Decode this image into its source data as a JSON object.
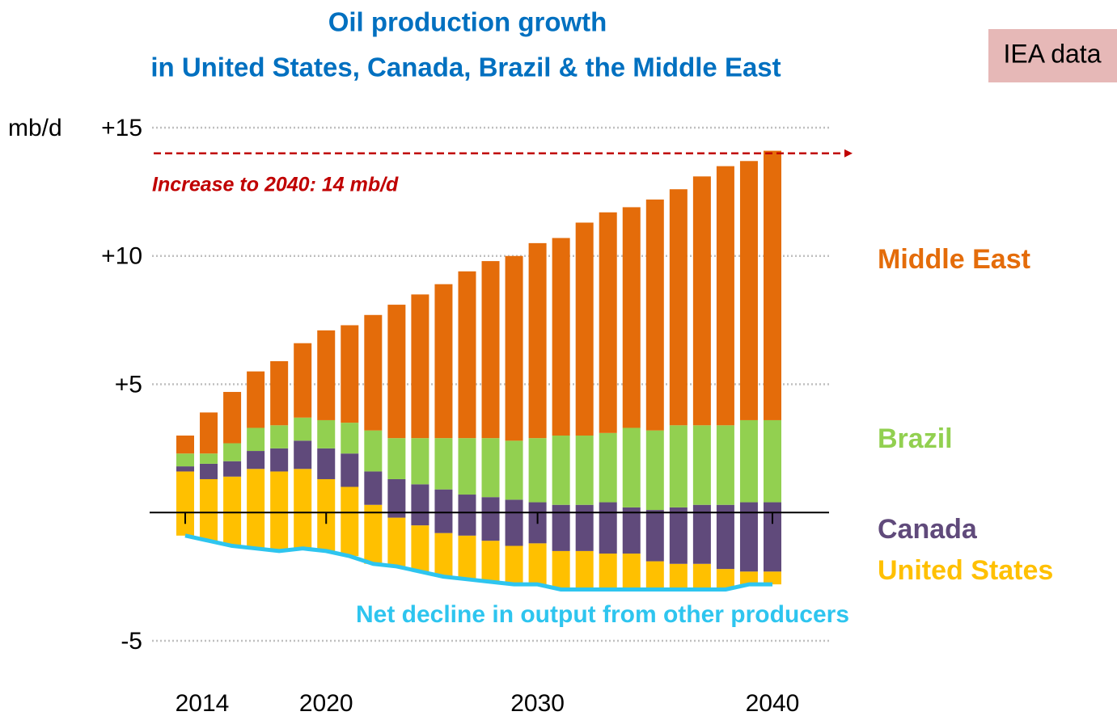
{
  "chart_data": {
    "type": "bar",
    "title": "Oil production growth",
    "subtitle": "in United States, Canada, Brazil & the Middle East",
    "source_badge": "IEA data",
    "y_label": "mb/d",
    "categories": [
      "2014",
      null,
      null,
      null,
      null,
      null,
      "2020",
      null,
      null,
      null,
      null,
      null,
      null,
      null,
      null,
      "2030",
      null,
      null,
      null,
      null,
      null,
      null,
      null,
      null,
      null,
      "2040"
    ],
    "series": [
      {
        "name": "Net decline in output from other producers",
        "type": "line",
        "color": "#2ec5ef",
        "values": [
          -0.9,
          -1.1,
          -1.3,
          -1.4,
          -1.5,
          -1.4,
          -1.5,
          -1.7,
          -2.0,
          -2.1,
          -2.3,
          -2.5,
          -2.6,
          -2.7,
          -2.8,
          -2.8,
          -3.0,
          -3.0,
          -3.0,
          -3.0,
          -3.0,
          -3.0,
          -3.0,
          -3.0,
          -2.8,
          -2.8
        ]
      },
      {
        "name": "United States",
        "color": "#ffc000",
        "values": [
          2.5,
          2.4,
          2.7,
          3.1,
          3.1,
          3.1,
          2.8,
          2.7,
          2.3,
          1.9,
          1.8,
          1.7,
          1.7,
          1.6,
          1.5,
          1.6,
          1.5,
          1.5,
          1.4,
          1.4,
          1.1,
          1.0,
          1.0,
          0.8,
          0.5,
          0.5
        ]
      },
      {
        "name": "Canada",
        "color": "#604a7b",
        "values": [
          0.2,
          0.6,
          0.6,
          0.7,
          0.9,
          1.1,
          1.2,
          1.3,
          1.3,
          1.5,
          1.6,
          1.7,
          1.6,
          1.7,
          1.8,
          1.6,
          1.8,
          1.8,
          2.0,
          1.8,
          2.0,
          2.2,
          2.3,
          2.5,
          2.7,
          2.7
        ]
      },
      {
        "name": "Brazil",
        "color": "#92d050",
        "values": [
          0.5,
          0.4,
          0.7,
          0.9,
          0.9,
          0.9,
          1.1,
          1.2,
          1.6,
          1.6,
          1.8,
          2.0,
          2.2,
          2.3,
          2.3,
          2.5,
          2.7,
          2.7,
          2.7,
          3.1,
          3.1,
          3.2,
          3.1,
          3.1,
          3.2,
          3.2
        ]
      },
      {
        "name": "Middle East",
        "color": "#e46c0a",
        "values": [
          0.7,
          1.6,
          2.0,
          2.2,
          2.5,
          2.9,
          3.5,
          3.8,
          4.5,
          5.2,
          5.6,
          6.0,
          6.5,
          6.9,
          7.2,
          7.6,
          7.7,
          8.3,
          8.6,
          8.6,
          9.0,
          9.2,
          9.7,
          10.1,
          10.1,
          10.5
        ]
      }
    ],
    "reference_line": {
      "value": 14,
      "label": "Increase to 2040: 14 mb/d",
      "color": "#c00000"
    },
    "ylim": [
      -5,
      15
    ],
    "yticks": [
      {
        "value": -5,
        "label": "-5"
      },
      {
        "value": 5,
        "label": "+5"
      },
      {
        "value": 10,
        "label": "+10"
      },
      {
        "value": 15,
        "label": "+15"
      }
    ],
    "zero_line": 0,
    "grid": true
  }
}
